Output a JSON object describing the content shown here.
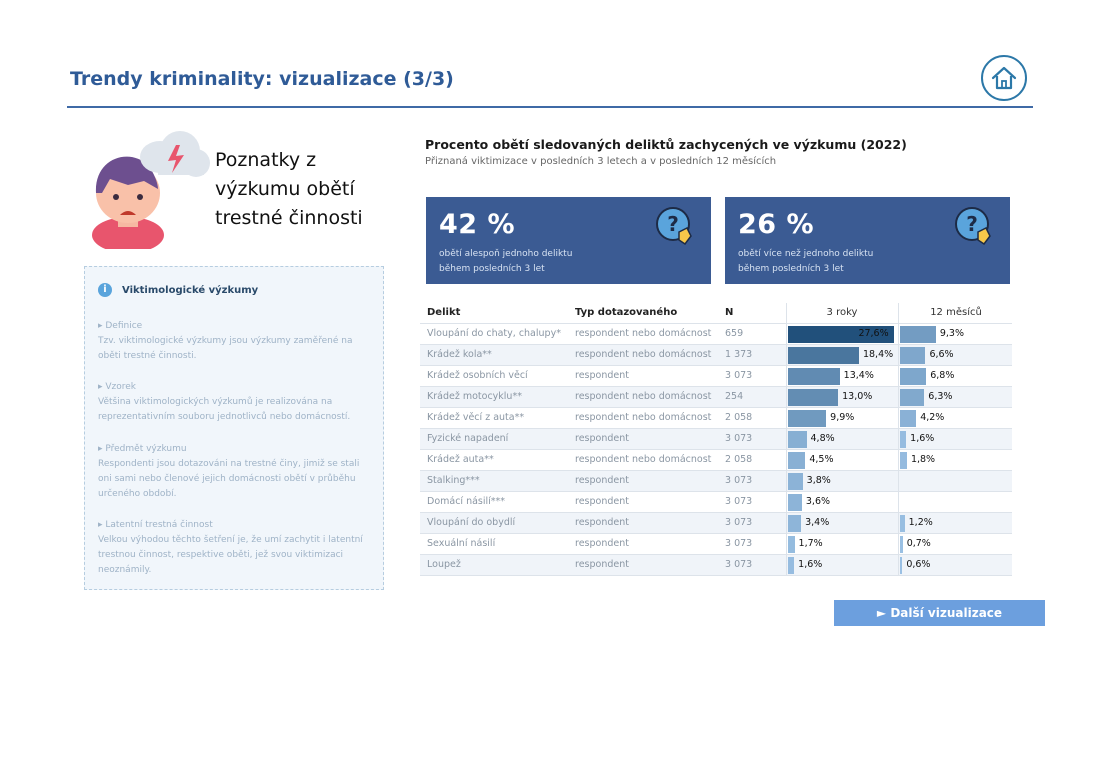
{
  "header": {
    "title": "Trendy kriminality: vizualizace (3/3)"
  },
  "hero": {
    "title": "Poznatky z výzkumu obětí trestné činnosti"
  },
  "info": {
    "heading": "Viktimologické výzkumy",
    "sections": [
      {
        "title": "▸ Definice",
        "text": "Tzv. viktimologické výzkumy jsou výzkumy zaměřené na oběti trestné činnosti."
      },
      {
        "title": "▸ Vzorek",
        "text": "Většina viktimologických výzkumů je realizována na reprezentativním souboru jednotlivců nebo domácností."
      },
      {
        "title": "▸ Předmět výzkumu",
        "text": "Respondenti jsou dotazováni na trestné činy, jimiž se stali oni sami nebo členové jejich domácnosti obětí v průběhu určeného období."
      },
      {
        "title": "▸ Latentní trestná činnost",
        "text": "Velkou výhodou těchto šetření je, že umí zachytit i latentní trestnou činnost, respektive oběti, jež svou viktimizaci neoznámily."
      }
    ]
  },
  "chart": {
    "title": "Procento obětí sledovaných deliktů zachycených ve výzkumu (2022)",
    "subtitle": "Přiznaná viktimizace v posledních 3 letech a v posledních 12 měsících"
  },
  "kpis": [
    {
      "value": "42 %",
      "line1": "obětí alespoň jednoho deliktu",
      "line2": "během posledních 3 let"
    },
    {
      "value": "26 %",
      "line1": "obětí více než jednoho deliktu",
      "line2": "během posledních 3 let"
    }
  ],
  "table": {
    "headers": {
      "offence": "Delikt",
      "type": "Typ dotazovaného",
      "n": "N",
      "y3": "3 roky",
      "m12": "12 měsíců"
    }
  },
  "chart_data": {
    "type": "bar",
    "categories": [
      "Vloupání do chaty, chalupy*",
      "Krádež kola**",
      "Krádež osobních věcí",
      "Krádež motocyklu**",
      "Krádež věcí z auta**",
      "Fyzické napadení",
      "Krádež auta**",
      "Stalking***",
      "Domácí násilí***",
      "Vloupání do obydlí",
      "Sexuální násilí",
      "Loupež"
    ],
    "respondent_types": [
      "respondent nebo domácnost",
      "respondent nebo domácnost",
      "respondent",
      "respondent nebo domácnost",
      "respondent nebo domácnost",
      "respondent",
      "respondent nebo domácnost",
      "respondent",
      "respondent",
      "respondent",
      "respondent",
      "respondent"
    ],
    "n": [
      "659",
      "1 373",
      "3 073",
      "254",
      "2 058",
      "3 073",
      "2 058",
      "3 073",
      "3 073",
      "3 073",
      "3 073",
      "3 073"
    ],
    "series": [
      {
        "name": "3 roky",
        "values": [
          27.6,
          18.4,
          13.4,
          13.0,
          9.9,
          4.8,
          4.5,
          3.8,
          3.6,
          3.4,
          1.7,
          1.6
        ],
        "labels": [
          "27,6%",
          "18,4%",
          "13,4%",
          "13,0%",
          "9,9%",
          "4,8%",
          "4,5%",
          "3,8%",
          "3,6%",
          "3,4%",
          "1,7%",
          "1,6%"
        ]
      },
      {
        "name": "12 měsíců",
        "values": [
          9.3,
          6.6,
          6.8,
          6.3,
          4.2,
          1.6,
          1.8,
          null,
          null,
          1.2,
          0.7,
          0.6
        ],
        "labels": [
          "9,3%",
          "6,6%",
          "6,8%",
          "6,3%",
          "4,2%",
          "1,6%",
          "1,8%",
          "",
          "",
          "1,2%",
          "0,7%",
          "0,6%"
        ]
      }
    ],
    "xlim": [
      0,
      28
    ]
  },
  "nav": {
    "next_label": "► Další vizualizace"
  },
  "colors": {
    "title": "#2f5b97",
    "kpi_bg": "#3b5b93",
    "bar_dark": "#1f4e79",
    "bar_light": "#9dc3e6",
    "button": "#6c9fde"
  }
}
